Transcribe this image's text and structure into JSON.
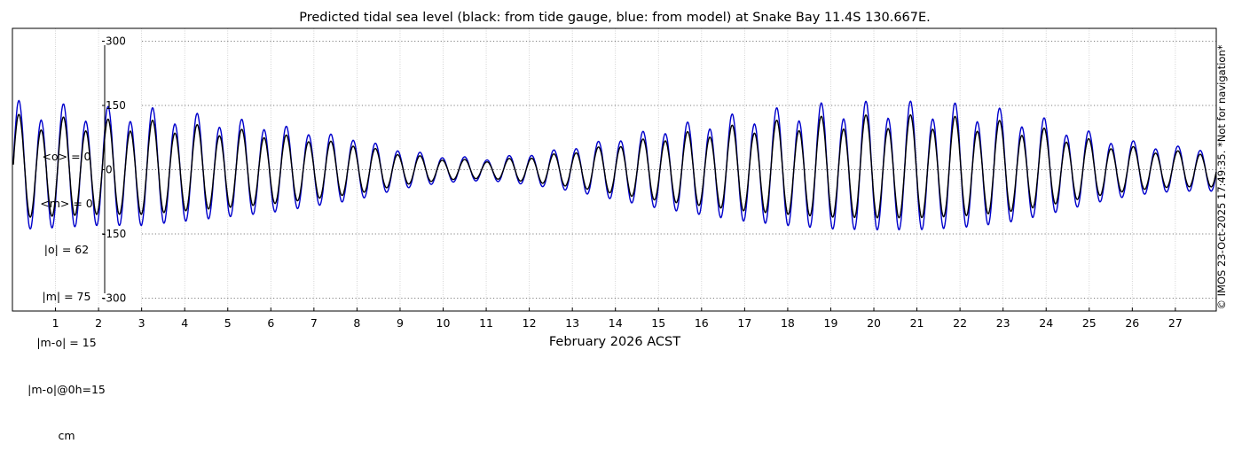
{
  "chart_data": {
    "type": "line",
    "title": "Predicted tidal sea level (black: from tide gauge, blue: from model) at Snake Bay 11.4S 130.667E.",
    "xlabel": "February 2026 ACST",
    "ylabel": "",
    "ylim": [
      -330,
      330
    ],
    "xlim": [
      0,
      27.95
    ],
    "yticks": [
      -300,
      -150,
      0,
      150,
      300
    ],
    "xticks": [
      1,
      2,
      3,
      4,
      5,
      6,
      7,
      8,
      9,
      10,
      11,
      12,
      13,
      14,
      15,
      16,
      17,
      18,
      19,
      20,
      21,
      22,
      23,
      24,
      25,
      26,
      27
    ],
    "grid": true,
    "tide_model": {
      "series": [
        {
          "name": "black: from tide gauge",
          "color": "#000000",
          "scale": 0.8
        },
        {
          "name": "blue: from model",
          "color": "#0000cc",
          "scale": 1.0
        }
      ],
      "spring_amplitudes_by_day": [
        140,
        135,
        130,
        130,
        120,
        110,
        100,
        85,
        70,
        45,
        30,
        25,
        35,
        50,
        70,
        90,
        105,
        120,
        130,
        138,
        140,
        140,
        135,
        125,
        105,
        80,
        60,
        50
      ],
      "higher_high_minus_lower_high_by_day": [
        45,
        40,
        35,
        35,
        30,
        25,
        15,
        10,
        5,
        5,
        5,
        5,
        5,
        5,
        10,
        15,
        25,
        30,
        35,
        40,
        40,
        40,
        40,
        35,
        30,
        20,
        15,
        10
      ],
      "period_hours": 12.42,
      "first_high_day": 0.15
    }
  },
  "stats": {
    "lines": [
      "<o> = 0",
      "<m> = 0",
      "|o| = 62",
      "|m| = 75",
      "|m-o| = 15",
      "|m-o|@0h=15",
      "cm"
    ]
  },
  "credit": "© IMOS 23-Oct-2025 17:49:35. *Not for navigation*"
}
